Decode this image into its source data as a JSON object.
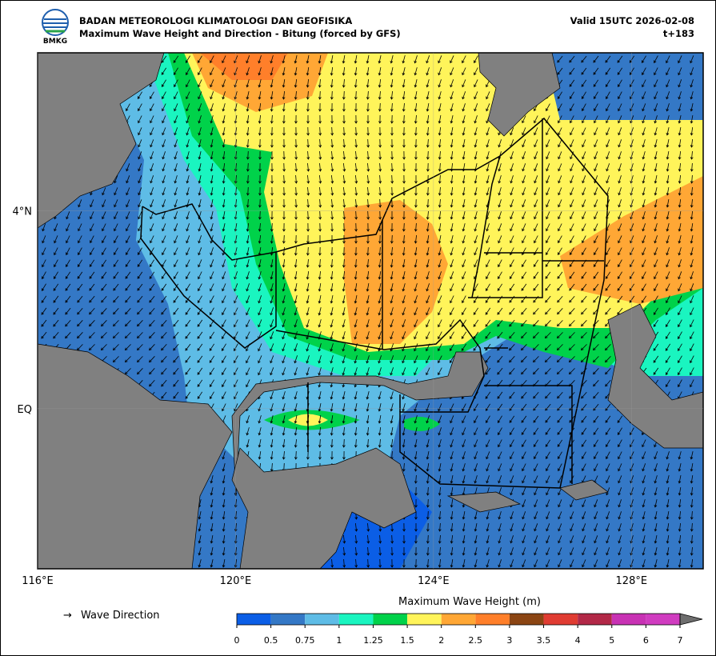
{
  "header": {
    "title": "BADAN METEOROLOGI KLIMATOLOGI DAN GEOFISIKA",
    "subtitle": "Maximum Wave Height and Direction - Bitung (forced by GFS)",
    "valid": "Valid 15UTC 2026-02-08",
    "step": "t+183",
    "logo_text": "BMKG"
  },
  "map": {
    "xlim": [
      116,
      129.45
    ],
    "ylim": [
      -3.24,
      7.2
    ],
    "xticks": [
      {
        "value": 116,
        "label": "116°E"
      },
      {
        "value": 120,
        "label": "120°E"
      },
      {
        "value": 124,
        "label": "124°E"
      },
      {
        "value": 128,
        "label": "128°E"
      }
    ],
    "yticks": [
      {
        "value": 4,
        "label": "4°N"
      },
      {
        "value": 0,
        "label": "EQ"
      }
    ]
  },
  "legend": {
    "label": "Wave Direction"
  },
  "colorbar": {
    "title": "Maximum Wave Height (m)",
    "levels": [
      0,
      0.5,
      0.75,
      1,
      1.25,
      1.5,
      2,
      2.5,
      3,
      3.5,
      4,
      5,
      6,
      7
    ],
    "colors": [
      "#0b5ee6",
      "#3478c6",
      "#5ebce6",
      "#1af5c0",
      "#00d24a",
      "#fff45a",
      "#ffa735",
      "#ff7f2a",
      "#8b4513",
      "#e03c32",
      "#b22847",
      "#c832b4",
      "#d03cc0"
    ],
    "extend_color": "#6e6e6e"
  }
}
